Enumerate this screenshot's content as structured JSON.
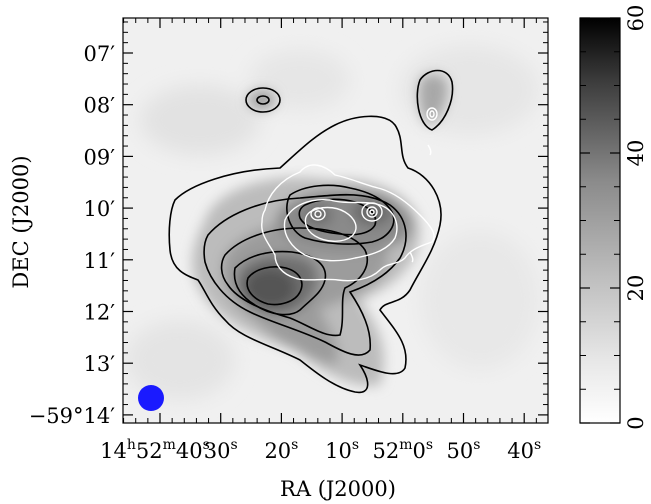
{
  "figure": {
    "xlabel": "RA (J2000)",
    "ylabel": "DEC (J2000)",
    "colorbar_ticks": [
      "0",
      "20",
      "40",
      "60"
    ],
    "colorbar_range": [
      0,
      60
    ],
    "beam_color": "#1a1aff"
  },
  "chart_data": {
    "type": "heatmap",
    "xlabel": "RA (J2000)",
    "ylabel": "DEC (J2000)",
    "x_ticks": [
      {
        "h": "14",
        "m": "52",
        "s": "40",
        "label_type": "hms"
      },
      {
        "s": "30",
        "label_type": "s"
      },
      {
        "s": "20",
        "label_type": "s"
      },
      {
        "s": "10",
        "label_type": "s"
      },
      {
        "m": "52",
        "s": "0",
        "label_type": "ms"
      },
      {
        "s": "50",
        "label_type": "s"
      },
      {
        "s": "40",
        "label_type": "s"
      }
    ],
    "y_ticks": [
      {
        "label": "07′"
      },
      {
        "label": "08′"
      },
      {
        "label": "09′"
      },
      {
        "label": "10′"
      },
      {
        "label": "11′"
      },
      {
        "label": "12′"
      },
      {
        "label": "13′"
      },
      {
        "label": "−59°14′"
      }
    ],
    "colorbar": {
      "min": 0,
      "max": 60,
      "ticks": [
        0,
        20,
        40,
        60
      ]
    }
  }
}
